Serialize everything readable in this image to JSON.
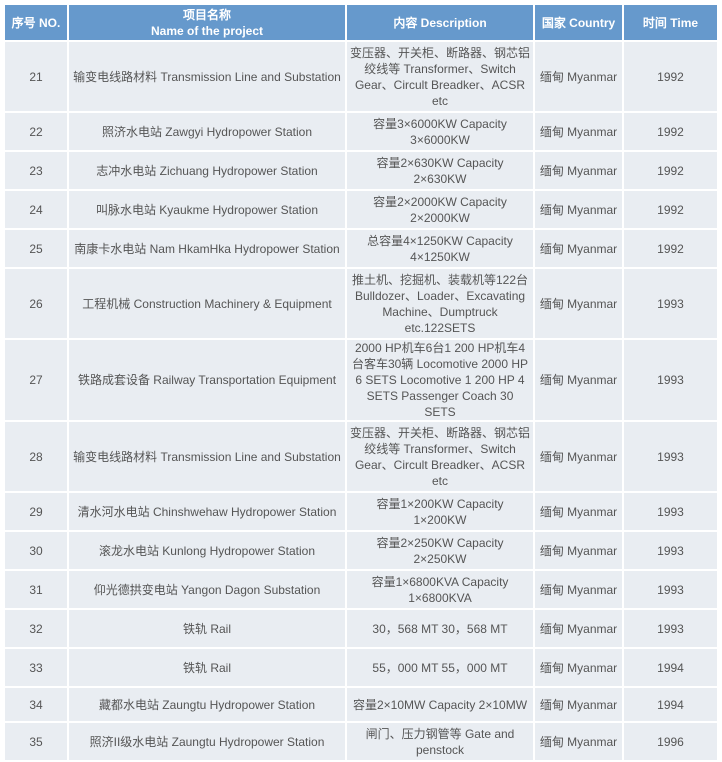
{
  "colors": {
    "header": "#6699cc",
    "row": "#e9edf2"
  },
  "headers": {
    "no": "序号 NO.",
    "name_cn": "项目名称",
    "name_en": "Name of the project",
    "desc": "内容 Description",
    "country": "国家 Country",
    "time": "时间 Time"
  },
  "rows": [
    {
      "no": "21",
      "name": "输变电线路材料 Transmission Line and Substation",
      "desc": "变压器、开关柜、断路器、钢芯铝绞线等 Transformer、Switch Gear、Circult Breadker、ACSR etc",
      "country": "缅甸 Myanmar",
      "time": "1992"
    },
    {
      "no": "22",
      "name": "照济水电站 Zawgyi Hydropower Station",
      "desc": "容量3×6000KW Capacity 3×6000KW",
      "country": "缅甸 Myanmar",
      "time": "1992"
    },
    {
      "no": "23",
      "name": "志冲水电站 Zichuang Hydropower Station",
      "desc": "容量2×630KW Capacity 2×630KW",
      "country": "缅甸 Myanmar",
      "time": "1992"
    },
    {
      "no": "24",
      "name": "叫脉水电站 Kyaukme Hydropower Station",
      "desc": "容量2×2000KW Capacity 2×2000KW",
      "country": "缅甸 Myanmar",
      "time": "1992"
    },
    {
      "no": "25",
      "name": "南康卡水电站 Nam HkamHka Hydropower Station",
      "desc": "总容量4×1250KW Capacity 4×1250KW",
      "country": "缅甸 Myanmar",
      "time": "1992"
    },
    {
      "no": "26",
      "name": "工程机械 Construction Machinery & Equipment",
      "desc": "推土机、挖掘机、装载机等122台 Bulldozer、Loader、Excavating Machine、Dumptruck etc.122SETS",
      "country": "缅甸 Myanmar",
      "time": "1993"
    },
    {
      "no": "27",
      "name": "铁路成套设备 Railway Transportation Equipment",
      "desc": "2000 HP机车6台1 200 HP机车4台客车30辆 Locomotive 2000 HP 6 SETS Locomotive 1 200 HP 4 SETS Passenger Coach 30 SETS",
      "country": "缅甸 Myanmar",
      "time": "1993"
    },
    {
      "no": "28",
      "name": "输变电线路材料 Transmission Line and Substation",
      "desc": "变压器、开关柜、断路器、钢芯铝绞线等 Transformer、Switch Gear、Circult Breadker、ACSR etc",
      "country": "缅甸 Myanmar",
      "time": "1993"
    },
    {
      "no": "29",
      "name": "清水河水电站 Chinshwehaw Hydropower Station",
      "desc": "容量1×200KW Capacity 1×200KW",
      "country": "缅甸 Myanmar",
      "time": "1993"
    },
    {
      "no": "30",
      "name": "滚龙水电站 Kunlong Hydropower Station",
      "desc": "容量2×250KW Capacity 2×250KW",
      "country": "缅甸 Myanmar",
      "time": "1993"
    },
    {
      "no": "31",
      "name": "仰光德拱变电站 Yangon Dagon Substation",
      "desc": "容量1×6800KVA Capacity 1×6800KVA",
      "country": "缅甸 Myanmar",
      "time": "1993"
    },
    {
      "no": "32",
      "name": "铁轨 Rail",
      "desc": "30，568 MT 30，568 MT",
      "country": "缅甸 Myanmar",
      "time": "1993"
    },
    {
      "no": "33",
      "name": "铁轨 Rail",
      "desc": "55，000 MT 55，000 MT",
      "country": "缅甸 Myanmar",
      "time": "1994"
    },
    {
      "no": "34",
      "name": "藏都水电站 Zaungtu Hydropower Station",
      "desc": "容量2×10MW Capacity 2×10MW",
      "country": "缅甸 Myanmar",
      "time": "1994"
    },
    {
      "no": "35",
      "name": "照济II级水电站 Zaungtu Hydropower Station",
      "desc": "闸门、压力钢管等 Gate and penstock",
      "country": "缅甸 Myanmar",
      "time": "1996"
    }
  ]
}
